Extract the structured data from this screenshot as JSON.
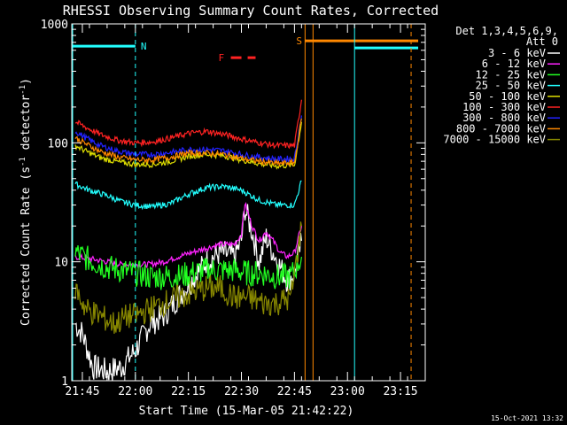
{
  "chart_data": {
    "type": "line",
    "title": "RHESSI Observing Summary Count Rates, Corrected",
    "ylabel_parts": [
      "Corrected Count Rate (s",
      "-1",
      " detector",
      "-1",
      ")"
    ],
    "xlabel": "Start Time (15-Mar-05 21:42:22)",
    "y_scale": "log",
    "ylim": [
      1,
      1000
    ],
    "xlim": [
      "21:42",
      "23:22"
    ],
    "y_ticks": [
      {
        "value": 1,
        "label": "1"
      },
      {
        "value": 10,
        "label": "10"
      },
      {
        "value": 100,
        "label": "100"
      },
      {
        "value": 1000,
        "label": "1000"
      }
    ],
    "x_ticks": [
      "21:45",
      "22:00",
      "22:15",
      "22:30",
      "22:45",
      "23:00",
      "23:15"
    ],
    "legend_header": [
      "Det 1,3,4,5,6,9,",
      "Att 0"
    ],
    "series": [
      {
        "name": "3 - 6 keV",
        "color": "#ffffff",
        "x": [
          "21:43",
          "21:45",
          "21:48",
          "21:52",
          "21:56",
          "22:00",
          "22:04",
          "22:08",
          "22:12",
          "22:16",
          "22:20",
          "22:24",
          "22:28",
          "22:30",
          "22:31",
          "22:33",
          "22:35",
          "22:37",
          "22:39",
          "22:41",
          "22:43",
          "22:45",
          "22:47"
        ],
        "values": [
          3.0,
          2.5,
          1.3,
          1.2,
          1.3,
          1.8,
          3.0,
          3.5,
          5.0,
          7.0,
          10,
          12,
          11,
          15,
          28,
          18,
          10,
          16,
          12,
          9,
          7,
          8,
          15
        ]
      },
      {
        "name": "6 - 12 keV",
        "color": "#ff22ff",
        "x": [
          "21:43",
          "21:48",
          "21:52",
          "21:56",
          "22:00",
          "22:04",
          "22:08",
          "22:12",
          "22:16",
          "22:20",
          "22:24",
          "22:28",
          "22:30",
          "22:31",
          "22:33",
          "22:35",
          "22:37",
          "22:39",
          "22:41",
          "22:43",
          "22:45",
          "22:47"
        ],
        "values": [
          11,
          10.5,
          10,
          9.5,
          9.5,
          9.5,
          10,
          11,
          12,
          13,
          14,
          14,
          17,
          31,
          20,
          15,
          18,
          15,
          12,
          11,
          12,
          20
        ]
      },
      {
        "name": "12 - 25 keV",
        "color": "#22ff22",
        "x": [
          "21:43",
          "21:48",
          "21:52",
          "21:56",
          "22:00",
          "22:04",
          "22:08",
          "22:12",
          "22:16",
          "22:20",
          "22:24",
          "22:28",
          "22:32",
          "22:36",
          "22:40",
          "22:44",
          "22:47"
        ],
        "values": [
          12,
          10,
          9.0,
          8.5,
          8.0,
          7.5,
          7.5,
          7.5,
          8.0,
          8.5,
          8.5,
          8.5,
          8.0,
          8.0,
          7.5,
          7.5,
          11
        ]
      },
      {
        "name": "25 - 50 keV",
        "color": "#22ffff",
        "x": [
          "21:43",
          "21:47",
          "21:52",
          "21:56",
          "22:00",
          "22:05",
          "22:10",
          "22:15",
          "22:20",
          "22:25",
          "22:30",
          "22:35",
          "22:40",
          "22:45",
          "22:47"
        ],
        "values": [
          45,
          40,
          36,
          32,
          30,
          29,
          31,
          37,
          42,
          43,
          40,
          33,
          30,
          30,
          48
        ]
      },
      {
        "name": "50 - 100 keV",
        "color": "#dddd00",
        "x": [
          "21:43",
          "21:46",
          "21:50",
          "21:55",
          "22:00",
          "22:05",
          "22:10",
          "22:15",
          "22:20",
          "22:25",
          "22:30",
          "22:35",
          "22:40",
          "22:45",
          "22:47"
        ],
        "values": [
          95,
          85,
          75,
          69,
          66,
          66,
          70,
          77,
          80,
          78,
          72,
          67,
          64,
          65,
          150
        ]
      },
      {
        "name": "100 - 300 keV",
        "color": "#ff2222",
        "x": [
          "21:43",
          "21:46",
          "21:50",
          "21:55",
          "22:00",
          "22:05",
          "22:10",
          "22:15",
          "22:20",
          "22:25",
          "22:30",
          "22:35",
          "22:40",
          "22:45",
          "22:47"
        ],
        "values": [
          150,
          135,
          118,
          105,
          100,
          102,
          110,
          120,
          125,
          118,
          108,
          100,
          95,
          95,
          230
        ]
      },
      {
        "name": "300 - 800 keV",
        "color": "#2222ff",
        "x": [
          "21:43",
          "21:46",
          "21:50",
          "21:55",
          "22:00",
          "22:05",
          "22:10",
          "22:15",
          "22:20",
          "22:25",
          "22:30",
          "22:35",
          "22:40",
          "22:45",
          "22:47"
        ],
        "values": [
          125,
          110,
          95,
          85,
          80,
          80,
          83,
          88,
          88,
          86,
          80,
          76,
          73,
          74,
          170
        ]
      },
      {
        "name": "800 - 7000 keV",
        "color": "#ff8800",
        "x": [
          "21:43",
          "21:46",
          "21:50",
          "21:55",
          "22:00",
          "22:05",
          "22:10",
          "22:15",
          "22:20",
          "22:25",
          "22:30",
          "22:35",
          "22:40",
          "22:45",
          "22:47"
        ],
        "values": [
          110,
          98,
          85,
          76,
          72,
          72,
          76,
          82,
          82,
          80,
          74,
          70,
          67,
          68,
          160
        ]
      },
      {
        "name": "7000 - 15000 keV",
        "color": "#888800",
        "x": [
          "21:43",
          "21:46",
          "21:50",
          "21:54",
          "21:58",
          "22:00",
          "22:04",
          "22:08",
          "22:12",
          "22:16",
          "22:20",
          "22:24",
          "22:28",
          "22:32",
          "22:36",
          "22:40",
          "22:44",
          "22:47"
        ],
        "values": [
          6.0,
          4.0,
          3.5,
          3.0,
          3.5,
          3.5,
          4.0,
          4.5,
          5.0,
          5.5,
          6.0,
          6.0,
          5.0,
          5.0,
          4.5,
          4.5,
          5.0,
          20
        ]
      }
    ],
    "annotations": {
      "N": {
        "label": "N",
        "color": "#22ffff",
        "x_start": "21:42",
        "x_end": "22:00",
        "level": 650
      },
      "S": {
        "label": "S",
        "color": "#ff8800",
        "x_start": "22:48",
        "x_end": "23:20",
        "level": 720
      },
      "F": {
        "label": "F",
        "color": "#ff2222",
        "x_start": "22:27",
        "x_end": "22:34",
        "level": 520
      },
      "night_start": "23:02",
      "night_end_marker": "23:18",
      "saa_start": "22:48",
      "saa_end": "22:49"
    },
    "grid": false,
    "legend_placement": "right"
  },
  "footer": {
    "timestamp": "15-Oct-2021 13:32"
  }
}
